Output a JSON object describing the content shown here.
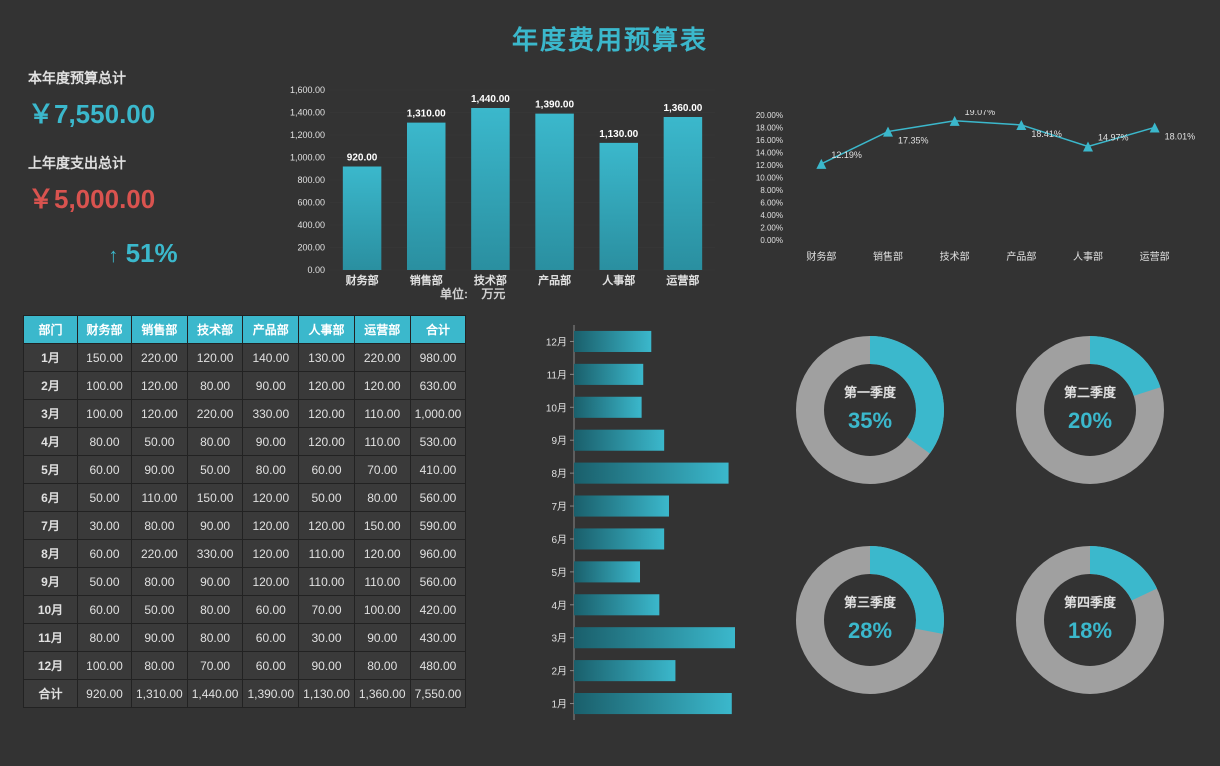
{
  "title": "年度费用预算表",
  "colors": {
    "accent": "#3bb8cc",
    "accent_dark": "#2a8fa0",
    "danger": "#d9534f",
    "bg": "#333333",
    "grid": "#4a4a4a",
    "text": "#e0e0e0",
    "donut_bg": "#a0a0a0"
  },
  "kpi": {
    "budget_label": "本年度预算总计",
    "budget_value": "￥7,550.00",
    "last_label": "上年度支出总计",
    "last_value": "￥5,000.00",
    "pct": "51%",
    "arrow": "↑"
  },
  "bar_chart": {
    "categories": [
      "财务部",
      "销售部",
      "技术部",
      "产品部",
      "人事部",
      "运营部"
    ],
    "values": [
      920.0,
      1310.0,
      1440.0,
      1390.0,
      1130.0,
      1360.0
    ],
    "labels": [
      "920.00",
      "1,310.00",
      "1,440.00",
      "1,390.00",
      "1,130.00",
      "1,360.00"
    ],
    "ymax": 1600,
    "yticks": [
      "0.00",
      "200.00",
      "400.00",
      "600.00",
      "800.00",
      "1,000.00",
      "1,200.00",
      "1,400.00",
      "1,600.00"
    ],
    "bar_color": "#3bb8cc",
    "grid_color": "#3a3a3a",
    "unit_label": "单位:",
    "unit_value": "万元",
    "label_color": "#ffffff",
    "tick_fontsize": 10
  },
  "line_chart": {
    "categories": [
      "财务部",
      "销售部",
      "技术部",
      "产品部",
      "人事部",
      "运营部"
    ],
    "values": [
      12.19,
      17.35,
      19.07,
      18.41,
      14.97,
      18.01
    ],
    "labels": [
      "12.19%",
      "17.35%",
      "19.07%",
      "18.41%",
      "14.97%",
      "18.01%"
    ],
    "ymax": 20,
    "yticks": [
      "0.00%",
      "2.00%",
      "4.00%",
      "6.00%",
      "8.00%",
      "10.00%",
      "12.00%",
      "14.00%",
      "16.00%",
      "18.00%",
      "20.00%"
    ],
    "line_color": "#3bb8cc",
    "marker": "triangle",
    "grid_color": "#3a3a3a"
  },
  "table": {
    "columns": [
      "部门",
      "财务部",
      "销售部",
      "技术部",
      "产品部",
      "人事部",
      "运营部",
      "合计"
    ],
    "rows": [
      [
        "1月",
        "150.00",
        "220.00",
        "120.00",
        "140.00",
        "130.00",
        "220.00",
        "980.00"
      ],
      [
        "2月",
        "100.00",
        "120.00",
        "80.00",
        "90.00",
        "120.00",
        "120.00",
        "630.00"
      ],
      [
        "3月",
        "100.00",
        "120.00",
        "220.00",
        "330.00",
        "120.00",
        "110.00",
        "1,000.00"
      ],
      [
        "4月",
        "80.00",
        "50.00",
        "80.00",
        "90.00",
        "120.00",
        "110.00",
        "530.00"
      ],
      [
        "5月",
        "60.00",
        "90.00",
        "50.00",
        "80.00",
        "60.00",
        "70.00",
        "410.00"
      ],
      [
        "6月",
        "50.00",
        "110.00",
        "150.00",
        "120.00",
        "50.00",
        "80.00",
        "560.00"
      ],
      [
        "7月",
        "30.00",
        "80.00",
        "90.00",
        "120.00",
        "120.00",
        "150.00",
        "590.00"
      ],
      [
        "8月",
        "60.00",
        "220.00",
        "330.00",
        "120.00",
        "110.00",
        "120.00",
        "960.00"
      ],
      [
        "9月",
        "50.00",
        "80.00",
        "90.00",
        "120.00",
        "110.00",
        "110.00",
        "560.00"
      ],
      [
        "10月",
        "60.00",
        "50.00",
        "80.00",
        "60.00",
        "70.00",
        "100.00",
        "420.00"
      ],
      [
        "11月",
        "80.00",
        "90.00",
        "80.00",
        "60.00",
        "30.00",
        "90.00",
        "430.00"
      ],
      [
        "12月",
        "100.00",
        "80.00",
        "70.00",
        "60.00",
        "90.00",
        "80.00",
        "480.00"
      ],
      [
        "合计",
        "920.00",
        "1,310.00",
        "1,440.00",
        "1,390.00",
        "1,130.00",
        "1,360.00",
        "7,550.00"
      ]
    ]
  },
  "hbar_chart": {
    "categories": [
      "12月",
      "11月",
      "10月",
      "9月",
      "8月",
      "7月",
      "6月",
      "5月",
      "4月",
      "3月",
      "2月",
      "1月"
    ],
    "values": [
      480,
      430,
      420,
      560,
      960,
      590,
      560,
      410,
      530,
      1000,
      630,
      980
    ],
    "xmax": 1000,
    "bar_color_start": "#3bb8cc",
    "bar_color_end": "#1a5f6b"
  },
  "donuts": [
    {
      "label": "第一季度",
      "pct": 35,
      "display": "35%",
      "color": "#3bb8cc",
      "bg": "#a0a0a0"
    },
    {
      "label": "第二季度",
      "pct": 20,
      "display": "20%",
      "color": "#3bb8cc",
      "bg": "#a0a0a0"
    },
    {
      "label": "第三季度",
      "pct": 28,
      "display": "28%",
      "color": "#3bb8cc",
      "bg": "#a0a0a0"
    },
    {
      "label": "第四季度",
      "pct": 18,
      "display": "18%",
      "color": "#3bb8cc",
      "bg": "#a0a0a0"
    }
  ]
}
